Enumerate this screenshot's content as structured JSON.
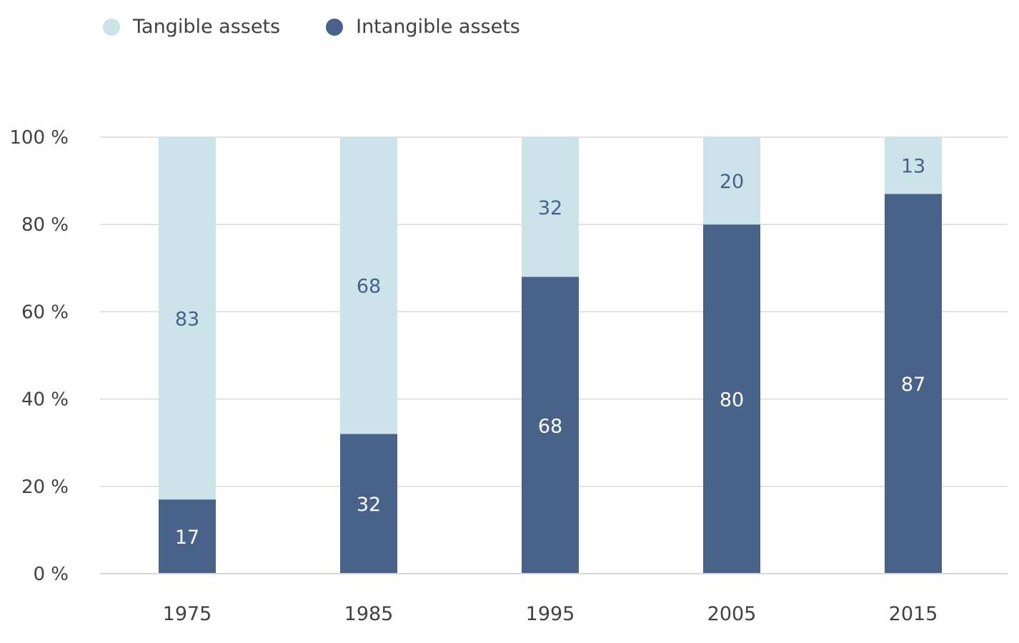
{
  "colors": {
    "tangible": "#cde3ea",
    "intangible": "#486289",
    "tangible_label": "#486289",
    "intangible_label": "#ffffff",
    "grid": "#d9d9d9",
    "axis_text": "#414141"
  },
  "legend": {
    "items": [
      {
        "label": "Tangible assets",
        "color": "#cde3ea"
      },
      {
        "label": "Intangible assets",
        "color": "#486289"
      }
    ]
  },
  "chart_data": {
    "type": "bar",
    "stacked": true,
    "categories": [
      "1975",
      "1985",
      "1995",
      "2005",
      "2015"
    ],
    "series": [
      {
        "name": "Intangible assets",
        "values": [
          17,
          32,
          68,
          80,
          87
        ],
        "color": "#486289"
      },
      {
        "name": "Tangible assets",
        "values": [
          83,
          68,
          32,
          20,
          13
        ],
        "color": "#cde3ea"
      }
    ],
    "y_ticks": [
      "0 %",
      "20 %",
      "40 %",
      "60 %",
      "80 %",
      "100 %"
    ],
    "y_tick_values": [
      0,
      20,
      40,
      60,
      80,
      100
    ],
    "ylim": [
      0,
      100
    ],
    "grid": true,
    "legend_position": "top-left",
    "title": "",
    "xlabel": "",
    "ylabel": ""
  }
}
